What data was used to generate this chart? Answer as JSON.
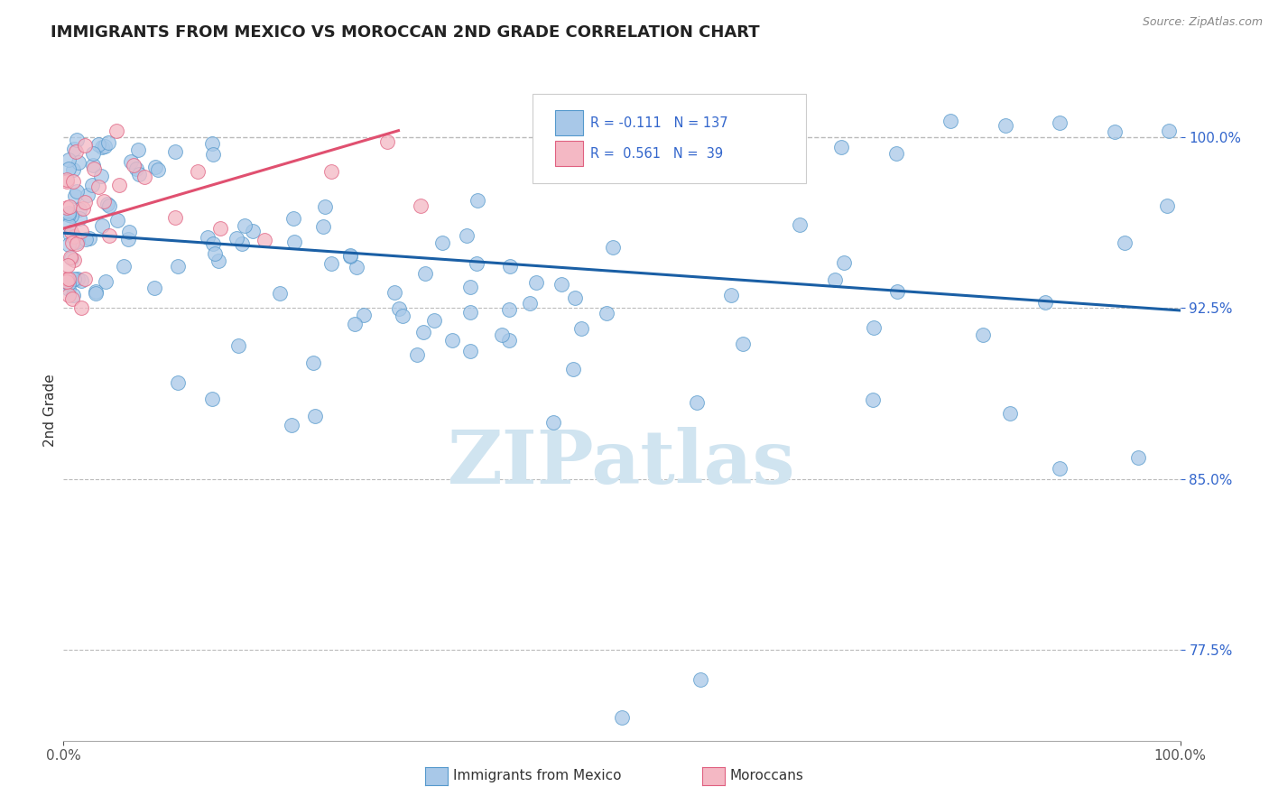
{
  "title": "IMMIGRANTS FROM MEXICO VS MOROCCAN 2ND GRADE CORRELATION CHART",
  "source": "Source: ZipAtlas.com",
  "ylabel": "2nd Grade",
  "ylim": [
    0.735,
    1.025
  ],
  "xlim": [
    0.0,
    1.0
  ],
  "blue_R": -0.111,
  "blue_N": 137,
  "pink_R": 0.561,
  "pink_N": 39,
  "blue_color": "#a8c8e8",
  "pink_color": "#f4b8c4",
  "blue_edge_color": "#5599cc",
  "pink_edge_color": "#e06080",
  "blue_line_color": "#1a5fa5",
  "pink_line_color": "#e05070",
  "tick_label_color": "#3366cc",
  "dashed_line_color": "#bbbbbb",
  "watermark_color": "#d0e4f0",
  "background_color": "#ffffff",
  "y_ticks": [
    0.775,
    0.85,
    0.925,
    1.0
  ],
  "y_tick_labels": [
    "77.5%",
    "85.0%",
    "92.5%",
    "100.0%"
  ],
  "blue_line_x": [
    0.0,
    1.0
  ],
  "blue_line_y": [
    0.958,
    0.924
  ],
  "pink_line_x": [
    0.0,
    0.3
  ],
  "pink_line_y": [
    0.96,
    1.003
  ]
}
